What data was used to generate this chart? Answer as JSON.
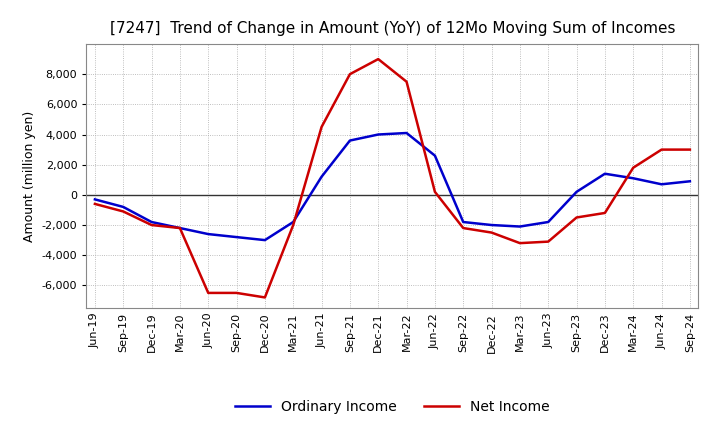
{
  "title": "[7247]  Trend of Change in Amount (YoY) of 12Mo Moving Sum of Incomes",
  "ylabel": "Amount (million yen)",
  "ylim": [
    -7500,
    10000
  ],
  "yticks": [
    -6000,
    -4000,
    -2000,
    0,
    2000,
    4000,
    6000,
    8000
  ],
  "background_color": "#ffffff",
  "grid_color": "#aaaaaa",
  "x_labels": [
    "Jun-19",
    "Sep-19",
    "Dec-19",
    "Mar-20",
    "Jun-20",
    "Sep-20",
    "Dec-20",
    "Mar-21",
    "Jun-21",
    "Sep-21",
    "Dec-21",
    "Mar-22",
    "Jun-22",
    "Sep-22",
    "Dec-22",
    "Mar-23",
    "Jun-23",
    "Sep-23",
    "Dec-23",
    "Mar-24",
    "Jun-24",
    "Sep-24"
  ],
  "ordinary_income": [
    -300,
    -800,
    -1800,
    -2200,
    -2600,
    -2800,
    -3000,
    -1800,
    1200,
    3600,
    4000,
    4100,
    2600,
    -1800,
    -2000,
    -2100,
    -1800,
    200,
    1400,
    1100,
    700,
    900
  ],
  "net_income": [
    -600,
    -1100,
    -2000,
    -2200,
    -6500,
    -6500,
    -6800,
    -2000,
    4500,
    8000,
    9000,
    7500,
    200,
    -2200,
    -2500,
    -3200,
    -3100,
    -1500,
    -1200,
    1800,
    3000,
    3000
  ],
  "ordinary_color": "#0000cc",
  "net_color": "#cc0000",
  "line_width": 1.8,
  "title_fontsize": 11,
  "tick_fontsize": 8,
  "label_fontsize": 9,
  "legend_fontsize": 10
}
